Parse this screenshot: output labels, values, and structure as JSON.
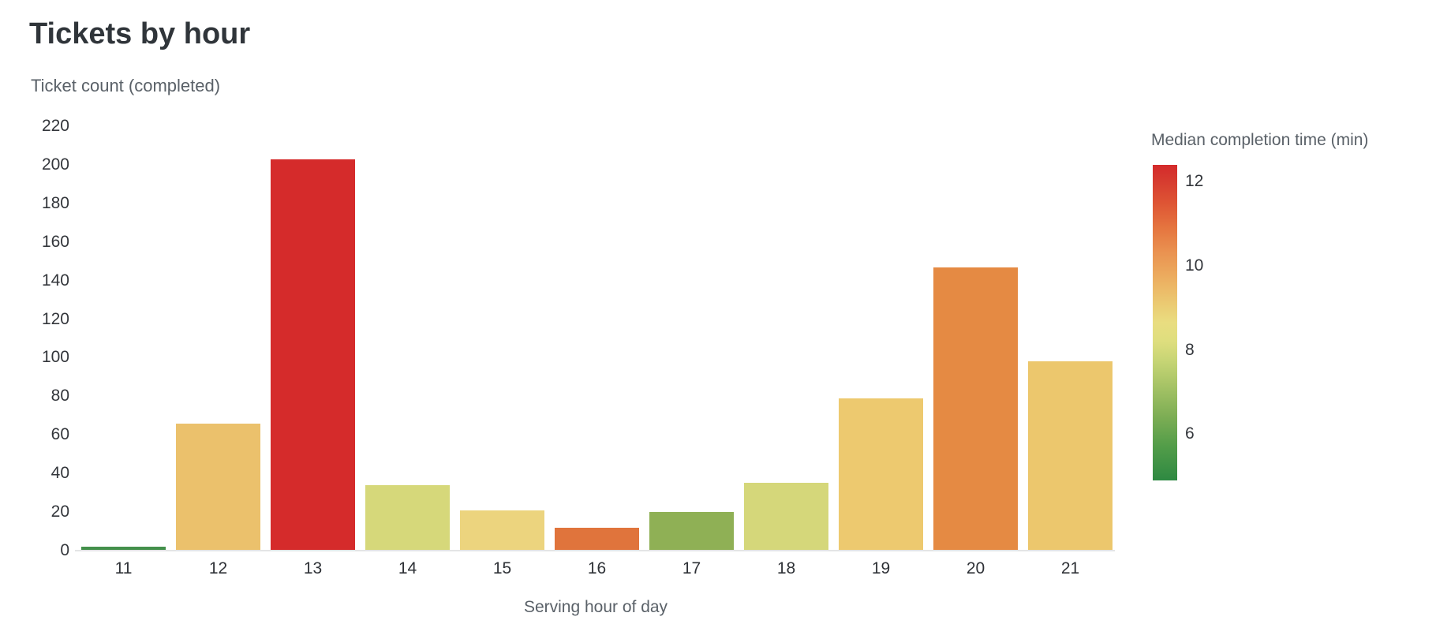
{
  "title": "Tickets by hour",
  "chart_data": {
    "type": "bar",
    "title": "Tickets by hour",
    "xlabel": "Serving hour of day",
    "ylabel": "Ticket count (completed)",
    "categories": [
      11,
      12,
      13,
      14,
      15,
      16,
      17,
      18,
      19,
      20,
      21
    ],
    "values": [
      2,
      66,
      203,
      34,
      21,
      12,
      20,
      35,
      79,
      147,
      98
    ],
    "bar_colors": [
      "#43904b",
      "#ebc16c",
      "#d52b2b",
      "#d6d87a",
      "#ecd47e",
      "#e0743c",
      "#8fb055",
      "#d5d77a",
      "#edc96f",
      "#e58a43",
      "#ecc76d"
    ],
    "median_completion_time_min_est": [
      5.1,
      9.3,
      12.3,
      8.3,
      8.9,
      10.8,
      6.9,
      8.3,
      9.1,
      10.4,
      9.2
    ],
    "ylim": [
      0,
      220
    ],
    "yticks": [
      0,
      20,
      40,
      60,
      80,
      100,
      120,
      140,
      160,
      180,
      200,
      220
    ],
    "grid": false,
    "legend_position": "right",
    "colorbar": {
      "title": "Median completion time (min)",
      "ticks": [
        12,
        10,
        8,
        6
      ],
      "domain_min": 4.9,
      "domain_max": 12.4,
      "gradient_top_to_bottom": [
        {
          "pos": 0,
          "color": "#d42a2b"
        },
        {
          "pos": 5,
          "color": "#d63b2f"
        },
        {
          "pos": 12,
          "color": "#de5434"
        },
        {
          "pos": 20,
          "color": "#e5753f"
        },
        {
          "pos": 28,
          "color": "#ea9351"
        },
        {
          "pos": 36,
          "color": "#ecae60"
        },
        {
          "pos": 44,
          "color": "#ebca72"
        },
        {
          "pos": 50,
          "color": "#e9dd80"
        },
        {
          "pos": 56,
          "color": "#dede7e"
        },
        {
          "pos": 63,
          "color": "#c3d373"
        },
        {
          "pos": 71,
          "color": "#a2c164"
        },
        {
          "pos": 80,
          "color": "#7cad54"
        },
        {
          "pos": 89,
          "color": "#539d49"
        },
        {
          "pos": 100,
          "color": "#2e8942"
        }
      ]
    }
  },
  "style_colors": {
    "title_text": "#30353a",
    "axis_title_text": "#5a6168",
    "tick_text": "#33363b",
    "baseline": "#e4e5e6",
    "background": "#ffffff"
  }
}
